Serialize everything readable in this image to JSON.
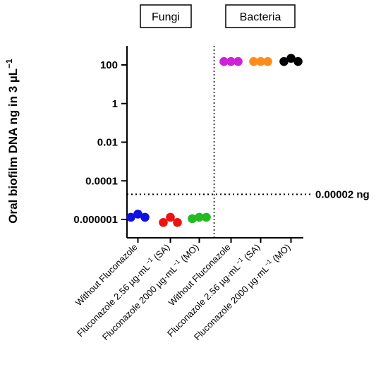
{
  "chart_data": {
    "type": "scatter",
    "ylabel": "Oral biofilm DNA ng in 3 µL",
    "ylabel_superscript": "−1",
    "yscale": "log",
    "ylim": [
      3e-07,
      1000
    ],
    "yticks": [
      {
        "value": 100,
        "label": "100"
      },
      {
        "value": 1,
        "label": "1"
      },
      {
        "value": 0.01,
        "label": "0.01"
      },
      {
        "value": 0.0001,
        "label": "0.0001"
      },
      {
        "value": 1e-06,
        "label": "0.000001"
      }
    ],
    "panels": [
      {
        "label": "Fungi",
        "categories": [
          0,
          1,
          2
        ]
      },
      {
        "label": "Bacteria",
        "categories": [
          3,
          4,
          5
        ]
      }
    ],
    "categories": [
      {
        "label": "Without Fluconazole"
      },
      {
        "label": "Fluconazole 2.56 µg·mL",
        "sup": "−1",
        "suffix": " (SA)"
      },
      {
        "label": "Fluconazole 2000 µg·mL",
        "sup": "−1",
        "suffix": " (MO)"
      },
      {
        "label": "Without Fluconazole"
      },
      {
        "label": "Fluconazole 2.56 µg·mL",
        "sup": "−1",
        "suffix": " (SA)"
      },
      {
        "label": "Fluconazole 2000 µg·mL",
        "sup": "−1",
        "suffix": " (MO)"
      }
    ],
    "series": [
      {
        "category": 0,
        "color": "#1010e0",
        "points": [
          1.3e-06,
          1.9e-06,
          1.3e-06
        ]
      },
      {
        "category": 1,
        "color": "#ee1111",
        "points": [
          7e-07,
          1.3e-06,
          7e-07
        ]
      },
      {
        "category": 2,
        "color": "#22bb22",
        "points": [
          1.1e-06,
          1.3e-06,
          1.3e-06
        ]
      },
      {
        "category": 3,
        "color": "#d020d8",
        "points": [
          150,
          150,
          150
        ]
      },
      {
        "category": 4,
        "color": "#ff8c1a",
        "points": [
          150,
          150,
          150
        ]
      },
      {
        "category": 5,
        "color": "#000000",
        "points": [
          150,
          220,
          150
        ]
      }
    ],
    "threshold": {
      "value": 2e-05,
      "label": "0.00002 ng"
    },
    "panel_divider": "between categories 3 and 4"
  }
}
